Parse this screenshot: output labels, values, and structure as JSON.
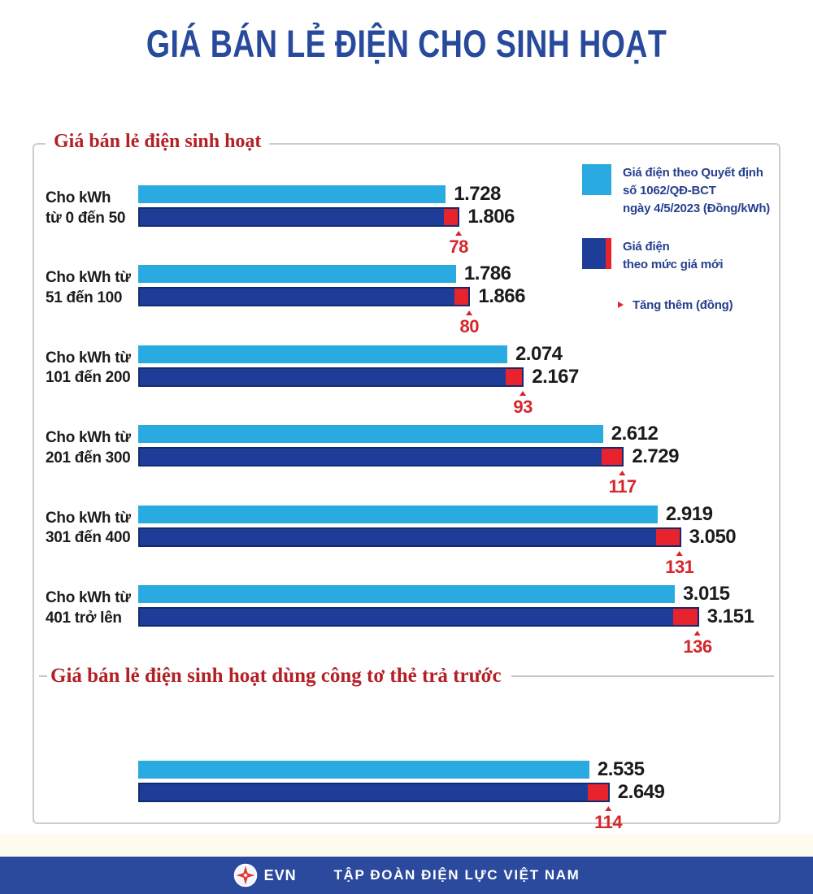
{
  "title": "GIÁ BÁN LẺ ĐIỆN CHO SINH HOẠT",
  "section1": {
    "heading": "Giá bán lẻ điện sinh hoạt",
    "groups": [
      {
        "label_line1": "Cho kWh",
        "label_line2": "từ 0 đến 50",
        "old": 1728,
        "new": 1806,
        "old_label": "1.728",
        "new_label": "1.806",
        "increase_label": "78"
      },
      {
        "label_line1": "Cho kWh từ",
        "label_line2": "51 đến 100",
        "old": 1786,
        "new": 1866,
        "old_label": "1.786",
        "new_label": "1.866",
        "increase_label": "80"
      },
      {
        "label_line1": "Cho kWh từ",
        "label_line2": "101 đến 200",
        "old": 2074,
        "new": 2167,
        "old_label": "2.074",
        "new_label": "2.167",
        "increase_label": "93"
      },
      {
        "label_line1": "Cho kWh từ",
        "label_line2": "201 đến 300",
        "old": 2612,
        "new": 2729,
        "old_label": "2.612",
        "new_label": "2.729",
        "increase_label": "117"
      },
      {
        "label_line1": "Cho kWh từ",
        "label_line2": "301 đến 400",
        "old": 2919,
        "new": 3050,
        "old_label": "2.919",
        "new_label": "3.050",
        "increase_label": "131"
      },
      {
        "label_line1": "Cho kWh từ",
        "label_line2": "401 trở lên",
        "old": 3015,
        "new": 3151,
        "old_label": "3.015",
        "new_label": "3.151",
        "increase_label": "136"
      }
    ]
  },
  "section2": {
    "heading": "Giá bán lẻ điện sinh hoạt dùng công tơ thẻ trả trước",
    "group": {
      "old": 2535,
      "new": 2649,
      "old_label": "2.535",
      "new_label": "2.649",
      "increase_label": "114"
    }
  },
  "legend": {
    "items": [
      {
        "swatch": "light-blue-square",
        "lines": [
          "Giá điện theo Quyết định",
          "số 1062/QĐ-BCT",
          "ngày 4/5/2023 (Đồng/kWh)"
        ]
      },
      {
        "swatch": "dark-blue-square-red-edge",
        "lines": [
          "Giá điện",
          "theo mức giá mới"
        ]
      },
      {
        "swatch": "red-arrow-bar",
        "lines": [
          "Tăng thêm (đồng)"
        ]
      }
    ]
  },
  "footer": {
    "logo_icon": "evn-star-logo",
    "logo_text": "EVN",
    "org": "TẬP ĐOÀN ĐIỆN LỰC VIỆT NAM"
  },
  "colors": {
    "light_blue": "#29abe2",
    "dark_blue": "#1e3d98",
    "red": "#e8232d",
    "inc_red": "#d6252b",
    "title_blue": "#274a9d",
    "heading_red": "#b32025",
    "footer_blue": "#2b4a9e"
  },
  "chart_data": {
    "type": "bar",
    "orientation": "horizontal",
    "title": "GIÁ BÁN LẺ ĐIỆN CHO SINH HOẠT",
    "subtitle_sections": [
      "Giá bán lẻ điện sinh hoạt",
      "Giá bán lẻ điện sinh hoạt dùng công tơ thẻ trả trước"
    ],
    "categories": [
      "Cho kWh từ 0 đến 50",
      "Cho kWh từ 51 đến 100",
      "Cho kWh từ 101 đến 200",
      "Cho kWh từ 201 đến 300",
      "Cho kWh từ 301 đến 400",
      "Cho kWh từ 401 trở lên",
      "Giá bán lẻ điện sinh hoạt dùng công tơ thẻ trả trước"
    ],
    "series": [
      {
        "name": "Giá điện theo Quyết định số 1062/QĐ-BCT ngày 4/5/2023 (Đồng/kWh)",
        "color": "#29abe2",
        "values": [
          1728,
          1786,
          2074,
          2612,
          2919,
          3015,
          2535
        ]
      },
      {
        "name": "Giá điện theo mức giá mới",
        "color": "#1e3d98",
        "values": [
          1806,
          1866,
          2167,
          2729,
          3050,
          3151,
          2649
        ]
      },
      {
        "name": "Tăng thêm (đồng)",
        "color": "#e8232d",
        "values": [
          78,
          80,
          93,
          117,
          131,
          136,
          114
        ]
      }
    ],
    "value_axis_range": [
      0,
      3600
    ],
    "grid": false,
    "legend_position": "top-right",
    "unit": "đồng/kWh"
  }
}
